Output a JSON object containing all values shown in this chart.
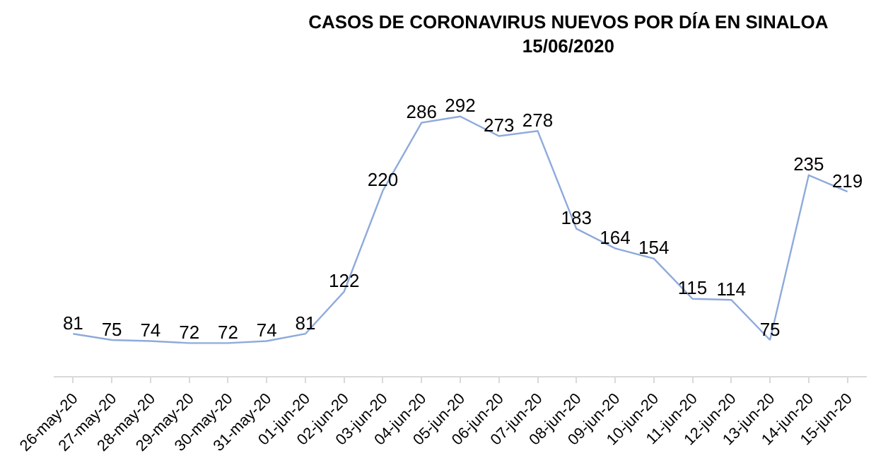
{
  "chart_data": {
    "type": "line",
    "title": "CASOS DE CORONAVIRUS NUEVOS POR DÍA EN SINALOA\n15/06/2020",
    "categories": [
      "26-may-20",
      "27-may-20",
      "28-may-20",
      "29-may-20",
      "30-may-20",
      "31-may-20",
      "01-jun-20",
      "02-jun-20",
      "03-jun-20",
      "04-jun-20",
      "05-jun-20",
      "06-jun-20",
      "07-jun-20",
      "08-jun-20",
      "09-jun-20",
      "10-jun-20",
      "11-jun-20",
      "12-jun-20",
      "13-jun-20",
      "14-jun-20",
      "15-jun-20"
    ],
    "series": [
      {
        "color": "#8eaadb",
        "values": [
          81,
          75,
          74,
          72,
          72,
          74,
          81,
          122,
          220,
          286,
          292,
          273,
          278,
          183,
          164,
          154,
          115,
          114,
          75,
          235,
          219
        ]
      }
    ],
    "data_labels": true,
    "marker": "none",
    "line_style": "solid",
    "tick_labels": "x"
  }
}
